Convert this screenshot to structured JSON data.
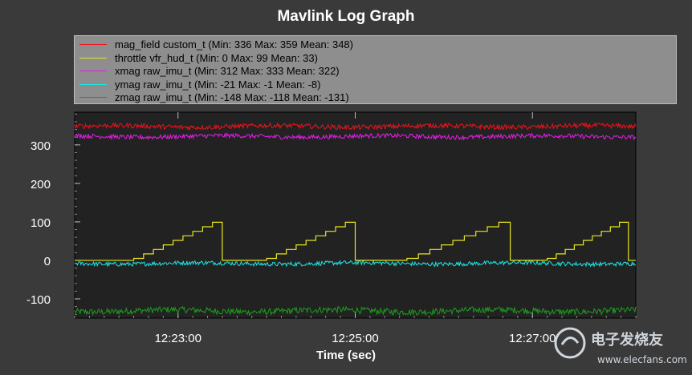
{
  "chart_data": {
    "type": "line",
    "title": "Mavlink Log Graph",
    "xlabel": "Time (sec)",
    "ylabel": "",
    "xlim": [
      "12:21:50",
      "12:28:10"
    ],
    "ylim": [
      -150,
      385
    ],
    "x_ticks": [
      "12:23:00",
      "12:25:00",
      "12:27:00"
    ],
    "y_ticks": [
      300,
      200,
      100,
      0,
      -100
    ],
    "background": "#222222",
    "grid": false,
    "legend_position": "top",
    "series": [
      {
        "name": "mag_field custom_t (Min: 336 Max: 359 Mean: 348)",
        "color": "#e8141e",
        "min": 336,
        "max": 359,
        "mean": 348
      },
      {
        "name": "throttle vfr_hud_t (Min: 0 Max: 99 Mean: 33)",
        "color": "#e6e61e",
        "min": 0,
        "max": 99,
        "mean": 33,
        "cycles": [
          {
            "start": "12:22:30",
            "end": "12:23:30"
          },
          {
            "start": "12:24:00",
            "end": "12:25:00"
          },
          {
            "start": "12:25:35",
            "end": "12:26:45"
          },
          {
            "start": "12:27:10",
            "end": "12:28:05"
          }
        ]
      },
      {
        "name": "xmag raw_imu_t (Min: 312 Max: 333 Mean: 322)",
        "color": "#e61ee6",
        "min": 312,
        "max": 333,
        "mean": 322
      },
      {
        "name": "ymag raw_imu_t (Min: -21 Max: -1 Mean: -8)",
        "color": "#1ee6e6",
        "min": -21,
        "max": -1,
        "mean": -8
      },
      {
        "name": "zmag raw_imu_t (Min: -148 Max: -118 Mean: -131)",
        "color": "#1e9a1e",
        "min": -148,
        "max": -118,
        "mean": -131
      }
    ]
  },
  "watermark": {
    "brand": "电子发烧友",
    "url": "www.elecfans.com"
  }
}
